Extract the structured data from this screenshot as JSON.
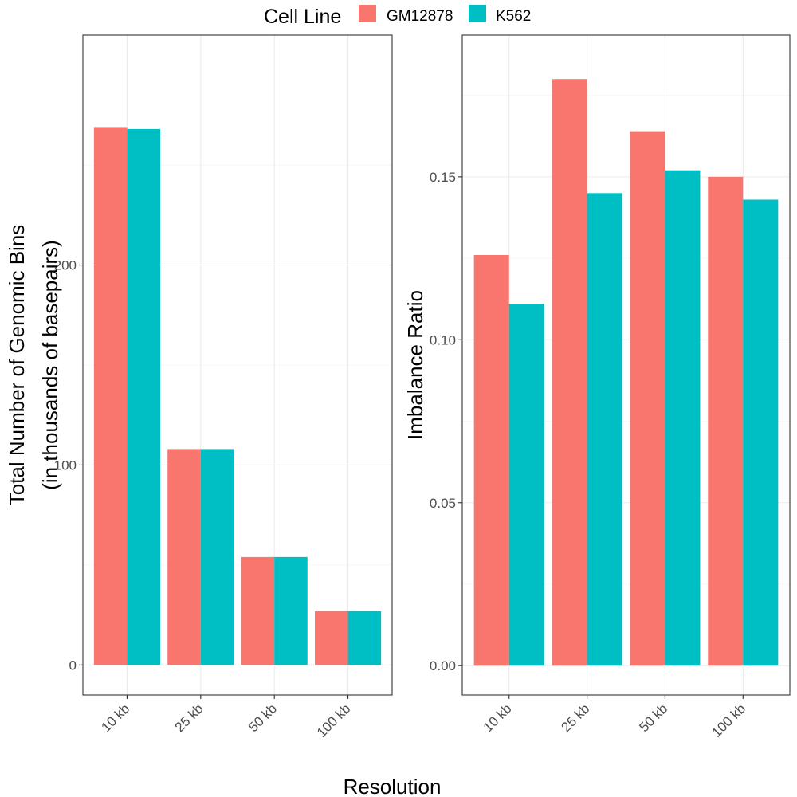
{
  "legend": {
    "title": "Cell Line",
    "placement": "top",
    "items": [
      {
        "label": "GM12878",
        "color": "#F8766D"
      },
      {
        "label": "K562",
        "color": "#00BFC4"
      }
    ]
  },
  "x_title": "Resolution",
  "chart_data": [
    {
      "type": "bar",
      "categories": [
        "10 kb",
        "25 kb",
        "50 kb",
        "100 kb"
      ],
      "series": [
        {
          "name": "GM12878",
          "color": "#F8766D",
          "values": [
            269,
            108,
            54,
            27
          ]
        },
        {
          "name": "K562",
          "color": "#00BFC4",
          "values": [
            268,
            108,
            54,
            27
          ]
        }
      ],
      "ylabel": [
        "Total Number of Genomic Bins",
        "(in thousands of basepairs)"
      ],
      "ylim": [
        -15,
        315
      ],
      "yticks": [
        0,
        100,
        200
      ],
      "yticklabels": [
        "0",
        "100",
        "200"
      ],
      "grid": true
    },
    {
      "type": "bar",
      "categories": [
        "10 kb",
        "25 kb",
        "50 kb",
        "100 kb"
      ],
      "series": [
        {
          "name": "GM12878",
          "color": "#F8766D",
          "values": [
            0.126,
            0.18,
            0.164,
            0.15
          ]
        },
        {
          "name": "K562",
          "color": "#00BFC4",
          "values": [
            0.111,
            0.145,
            0.152,
            0.143
          ]
        }
      ],
      "ylabel": [
        "Imbalance Ratio"
      ],
      "ylim": [
        -0.009,
        0.1935
      ],
      "yticks": [
        0,
        0.05,
        0.1,
        0.15
      ],
      "yticklabels": [
        "0.00",
        "0.05",
        "0.10",
        "0.15"
      ],
      "grid": true
    }
  ]
}
